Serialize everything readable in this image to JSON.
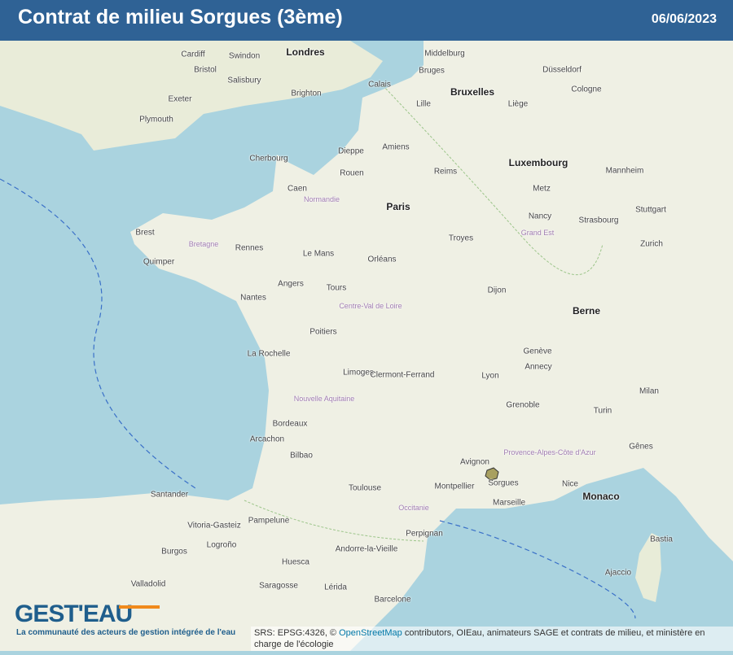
{
  "header": {
    "title": "Contrat de milieu Sorgues (3ème)",
    "date": "06/06/2023"
  },
  "logo": {
    "name": "GEST'EAU",
    "tagline": "La communauté des acteurs de gestion intégrée de l'eau"
  },
  "attribution": {
    "prefix": "SRS: EPSG:4326, © ",
    "osm_link": "OpenStreetMap",
    "suffix": " contributors, OIEau, animateurs SAGE et contrats de milieu, et ministère en charge de l'écologie"
  },
  "map": {
    "highlighted_area": "Sorgues",
    "colors": {
      "sea": "#aad3df",
      "land": "#f0efe6",
      "highlight": "#a8a060",
      "header": "#2f6295"
    },
    "cities": [
      "Londres",
      "Cardiff",
      "Swindon",
      "Bristol",
      "Salisbury",
      "Brighton",
      "Plymouth",
      "Exeter",
      "Middelburg",
      "Bruges",
      "Bruxelles",
      "Liège",
      "Lille",
      "Calais",
      "Dieppe",
      "Amiens",
      "Rouen",
      "Caen",
      "Cherbourg",
      "Paris",
      "Reims",
      "Metz",
      "Nancy",
      "Strasbourg",
      "Luxembourg",
      "Rennes",
      "Brest",
      "Quimper",
      "Le Mans",
      "Orléans",
      "Tours",
      "Angers",
      "Nantes",
      "Dijon",
      "Troyes",
      "Poitiers",
      "La Rochelle",
      "Limoges",
      "Clermont-Ferrand",
      "Lyon",
      "Genève",
      "Annecy",
      "Grenoble",
      "Bordeaux",
      "Arcachon",
      "Toulouse",
      "Montpellier",
      "Avignon",
      "Marseille",
      "Nice",
      "Monaco",
      "Perpignan",
      "Andorre-la-Vieille",
      "Bilbao",
      "Santander",
      "Barcelone",
      "Saragosse",
      "Valladolid",
      "Turin",
      "Milan",
      "Gênes",
      "Berne",
      "Zurich",
      "Stuttgart",
      "Mannheim",
      "Düsseldorf",
      "Cologne",
      "Ajaccio",
      "Bastia",
      "Lérida",
      "Pampelune",
      "Huesca",
      "Vitoria-Gasteiz",
      "Logroño",
      "Burgos",
      "Sorgues"
    ],
    "regions": [
      "Normandie",
      "Bretagne",
      "Centre-Val de Loire",
      "Grand Est",
      "Nouvelle Aquitaine",
      "Occitanie",
      "Provence-Alpes-Côte d'Azur"
    ]
  }
}
